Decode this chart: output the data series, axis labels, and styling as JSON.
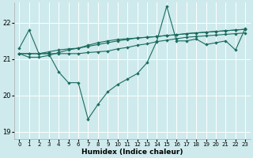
{
  "xlabel": "Humidex (Indice chaleur)",
  "bg_color": "#ceeaec",
  "grid_color": "#ffffff",
  "line_color": "#1a6b5e",
  "xlim": [
    -0.5,
    23.5
  ],
  "ylim": [
    18.8,
    22.55
  ],
  "yticks": [
    19,
    20,
    21,
    22
  ],
  "xticks": [
    0,
    1,
    2,
    3,
    4,
    5,
    6,
    7,
    8,
    9,
    10,
    11,
    12,
    13,
    14,
    15,
    16,
    17,
    18,
    19,
    20,
    21,
    22,
    23
  ],
  "series": [
    {
      "x": [
        0,
        1,
        2,
        3,
        4,
        5,
        6,
        7,
        8,
        9,
        10,
        11,
        12,
        13,
        14,
        15,
        16,
        17,
        18,
        19,
        20,
        21,
        22,
        23
      ],
      "y": [
        21.3,
        21.8,
        21.15,
        21.15,
        20.65,
        20.35,
        20.35,
        19.35,
        19.75,
        20.1,
        20.3,
        20.45,
        20.6,
        20.9,
        21.5,
        22.45,
        21.5,
        21.5,
        21.55,
        21.4,
        21.45,
        21.5,
        21.25,
        21.85
      ]
    },
    {
      "x": [
        0,
        1,
        2,
        3,
        4,
        5,
        6,
        7,
        8,
        9,
        10,
        11,
        12,
        13,
        14,
        15,
        16,
        17,
        18,
        19,
        20,
        21,
        22,
        23
      ],
      "y": [
        21.15,
        21.15,
        21.15,
        21.15,
        21.15,
        21.15,
        21.15,
        21.18,
        21.2,
        21.22,
        21.28,
        21.32,
        21.38,
        21.42,
        21.48,
        21.52,
        21.56,
        21.6,
        21.62,
        21.64,
        21.66,
        21.68,
        21.7,
        21.72
      ]
    },
    {
      "x": [
        0,
        1,
        2,
        3,
        4,
        5,
        6,
        7,
        8,
        9,
        10,
        11,
        12,
        13,
        14,
        15,
        16,
        17,
        18,
        19,
        20,
        21,
        22,
        23
      ],
      "y": [
        21.15,
        21.15,
        21.15,
        21.2,
        21.25,
        21.28,
        21.3,
        21.35,
        21.4,
        21.45,
        21.5,
        21.54,
        21.58,
        21.6,
        21.62,
        21.65,
        21.67,
        21.7,
        21.72,
        21.74,
        21.76,
        21.78,
        21.8,
        21.82
      ]
    },
    {
      "x": [
        0,
        1,
        2,
        3,
        4,
        5,
        6,
        7,
        8,
        9,
        10,
        11,
        12,
        13,
        14,
        15,
        16,
        17,
        18,
        19,
        20,
        21,
        22,
        23
      ],
      "y": [
        21.15,
        21.05,
        21.05,
        21.1,
        21.18,
        21.25,
        21.3,
        21.38,
        21.45,
        21.5,
        21.54,
        21.56,
        21.58,
        21.6,
        21.62,
        21.65,
        21.67,
        21.7,
        21.72,
        21.74,
        21.76,
        21.78,
        21.8,
        21.82
      ]
    }
  ]
}
